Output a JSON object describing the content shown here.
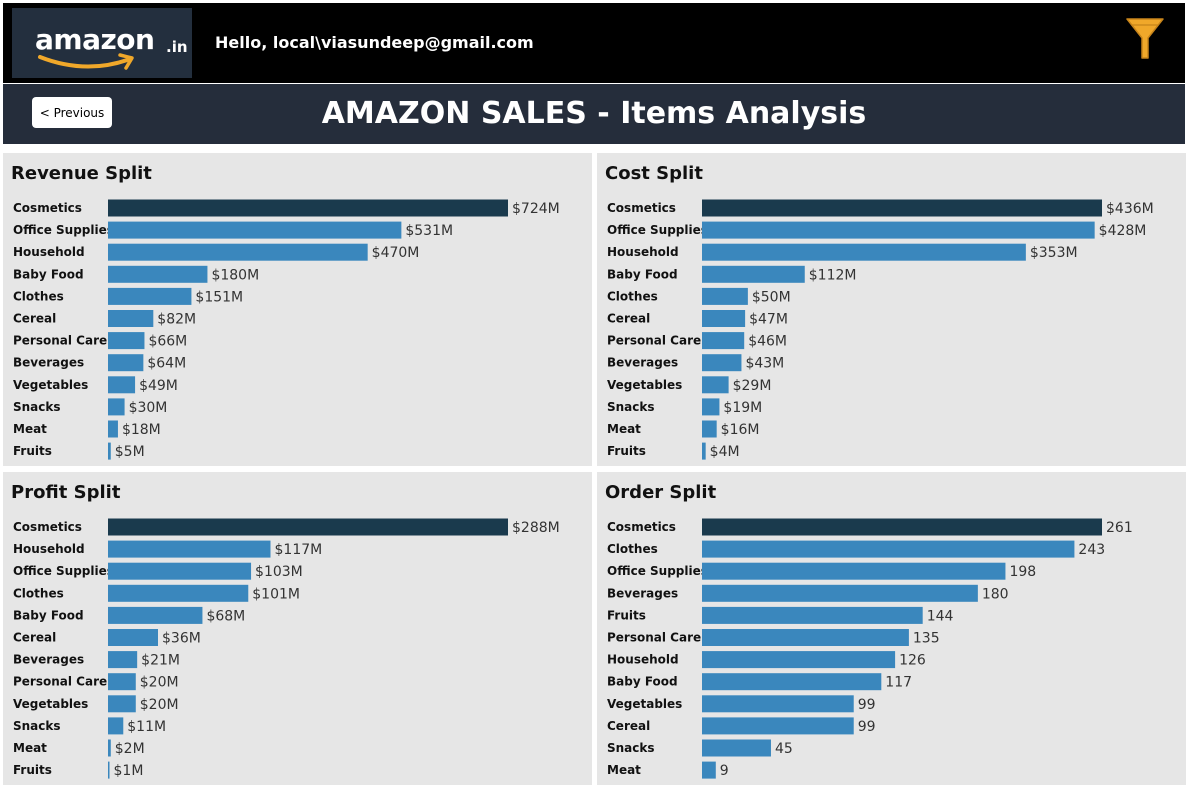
{
  "header": {
    "logo_text": "amazon",
    "logo_tld": ".in",
    "greeting": "Hello, local\\viasundeep@gmail.com",
    "filter_icon": "funnel-icon",
    "colors": {
      "topbar": "#000000",
      "logo_bg": "#232f3e",
      "accent": "#f0a82a"
    }
  },
  "titlebar": {
    "previous_label": "< Previous",
    "title": "AMAZON SALES - Items Analysis",
    "background": "#252d3b"
  },
  "colors": {
    "highlight_bar": "#1a3a4d",
    "bar": "#3a87bd",
    "panel_bg": "#e6e6e6"
  },
  "chart_data": [
    {
      "type": "bar",
      "orientation": "horizontal",
      "title": "Revenue Split",
      "categories": [
        "Cosmetics",
        "Office Supplies",
        "Household",
        "Baby Food",
        "Clothes",
        "Cereal",
        "Personal Care",
        "Beverages",
        "Vegetables",
        "Snacks",
        "Meat",
        "Fruits"
      ],
      "values": [
        724,
        531,
        470,
        180,
        151,
        82,
        66,
        64,
        49,
        30,
        18,
        5
      ],
      "labels": [
        "$724M",
        "$531M",
        "$470M",
        "$180M",
        "$151M",
        "$82M",
        "$66M",
        "$64M",
        "$49M",
        "$30M",
        "$18M",
        "$5M"
      ],
      "unit": "$M",
      "grid": false
    },
    {
      "type": "bar",
      "orientation": "horizontal",
      "title": "Cost Split",
      "categories": [
        "Cosmetics",
        "Office Supplies",
        "Household",
        "Baby Food",
        "Clothes",
        "Cereal",
        "Personal Care",
        "Beverages",
        "Vegetables",
        "Snacks",
        "Meat",
        "Fruits"
      ],
      "values": [
        436,
        428,
        353,
        112,
        50,
        47,
        46,
        43,
        29,
        19,
        16,
        4
      ],
      "labels": [
        "$436M",
        "$428M",
        "$353M",
        "$112M",
        "$50M",
        "$47M",
        "$46M",
        "$43M",
        "$29M",
        "$19M",
        "$16M",
        "$4M"
      ],
      "unit": "$M",
      "grid": false
    },
    {
      "type": "bar",
      "orientation": "horizontal",
      "title": "Profit Split",
      "categories": [
        "Cosmetics",
        "Household",
        "Office Supplies",
        "Clothes",
        "Baby Food",
        "Cereal",
        "Beverages",
        "Personal Care",
        "Vegetables",
        "Snacks",
        "Meat",
        "Fruits"
      ],
      "values": [
        288,
        117,
        103,
        101,
        68,
        36,
        21,
        20,
        20,
        11,
        2,
        1
      ],
      "labels": [
        "$288M",
        "$117M",
        "$103M",
        "$101M",
        "$68M",
        "$36M",
        "$21M",
        "$20M",
        "$20M",
        "$11M",
        "$2M",
        "$1M"
      ],
      "unit": "$M",
      "grid": false
    },
    {
      "type": "bar",
      "orientation": "horizontal",
      "title": "Order Split",
      "categories": [
        "Cosmetics",
        "Clothes",
        "Office Supplies",
        "Beverages",
        "Fruits",
        "Personal Care",
        "Household",
        "Baby Food",
        "Vegetables",
        "Cereal",
        "Snacks",
        "Meat"
      ],
      "values": [
        261,
        243,
        198,
        180,
        144,
        135,
        126,
        117,
        99,
        99,
        45,
        9
      ],
      "labels": [
        "261",
        "243",
        "198",
        "180",
        "144",
        "135",
        "126",
        "117",
        "99",
        "99",
        "45",
        "9"
      ],
      "unit": "",
      "grid": false
    }
  ]
}
